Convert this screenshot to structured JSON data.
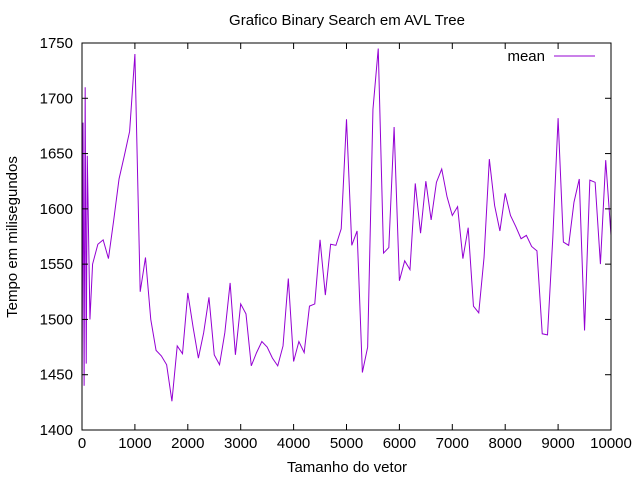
{
  "chart_data": {
    "type": "line",
    "title": "Grafico Binary Search em AVL Tree",
    "xlabel": "Tamanho do vetor",
    "ylabel": "Tempo em milisegundos",
    "xlim": [
      0,
      10000
    ],
    "ylim": [
      1400,
      1750
    ],
    "xticks": [
      0,
      1000,
      2000,
      3000,
      4000,
      5000,
      6000,
      7000,
      8000,
      9000,
      10000
    ],
    "yticks": [
      1400,
      1450,
      1500,
      1550,
      1600,
      1650,
      1700,
      1750
    ],
    "grid": false,
    "legend_position": "top-right",
    "series": [
      {
        "name": "mean",
        "color": "#9400d3",
        "x": [
          0,
          20,
          40,
          60,
          80,
          100,
          150,
          200,
          300,
          400,
          500,
          600,
          700,
          800,
          900,
          1000,
          1100,
          1200,
          1300,
          1400,
          1500,
          1600,
          1700,
          1800,
          1900,
          2000,
          2100,
          2200,
          2300,
          2400,
          2500,
          2600,
          2700,
          2800,
          2900,
          3000,
          3100,
          3200,
          3300,
          3400,
          3500,
          3600,
          3700,
          3800,
          3900,
          4000,
          4100,
          4200,
          4300,
          4400,
          4500,
          4600,
          4700,
          4800,
          4900,
          5000,
          5100,
          5200,
          5300,
          5400,
          5500,
          5600,
          5700,
          5800,
          5900,
          6000,
          6100,
          6200,
          6300,
          6400,
          6500,
          6600,
          6700,
          6800,
          6900,
          7000,
          7100,
          7200,
          7300,
          7400,
          7500,
          7600,
          7700,
          7800,
          7900,
          8000,
          8100,
          8200,
          8300,
          8400,
          8500,
          8600,
          8700,
          8800,
          8900,
          9000,
          9100,
          9200,
          9300,
          9400,
          9500,
          9600,
          9700,
          9800,
          9900,
          10000
        ],
        "y": [
          1437,
          1678,
          1440,
          1710,
          1460,
          1648,
          1500,
          1550,
          1568,
          1572,
          1555,
          1590,
          1627,
          1648,
          1670,
          1740,
          1525,
          1556,
          1500,
          1472,
          1467,
          1459,
          1426,
          1476,
          1469,
          1524,
          1493,
          1465,
          1488,
          1520,
          1468,
          1459,
          1488,
          1533,
          1468,
          1514,
          1505,
          1458,
          1470,
          1480,
          1475,
          1465,
          1458,
          1476,
          1537,
          1462,
          1480,
          1470,
          1512,
          1514,
          1572,
          1522,
          1568,
          1567,
          1582,
          1681,
          1567,
          1580,
          1452,
          1475,
          1690,
          1745,
          1560,
          1565,
          1674,
          1535,
          1553,
          1545,
          1623,
          1578,
          1625,
          1590,
          1624,
          1636,
          1611,
          1594,
          1602,
          1555,
          1583,
          1512,
          1506,
          1556,
          1645,
          1603,
          1580,
          1614,
          1594,
          1584,
          1573,
          1576,
          1566,
          1562,
          1487,
          1486,
          1574,
          1682,
          1570,
          1567,
          1606,
          1627,
          1490,
          1626,
          1624,
          1550,
          1644,
          1576
        ]
      }
    ]
  }
}
